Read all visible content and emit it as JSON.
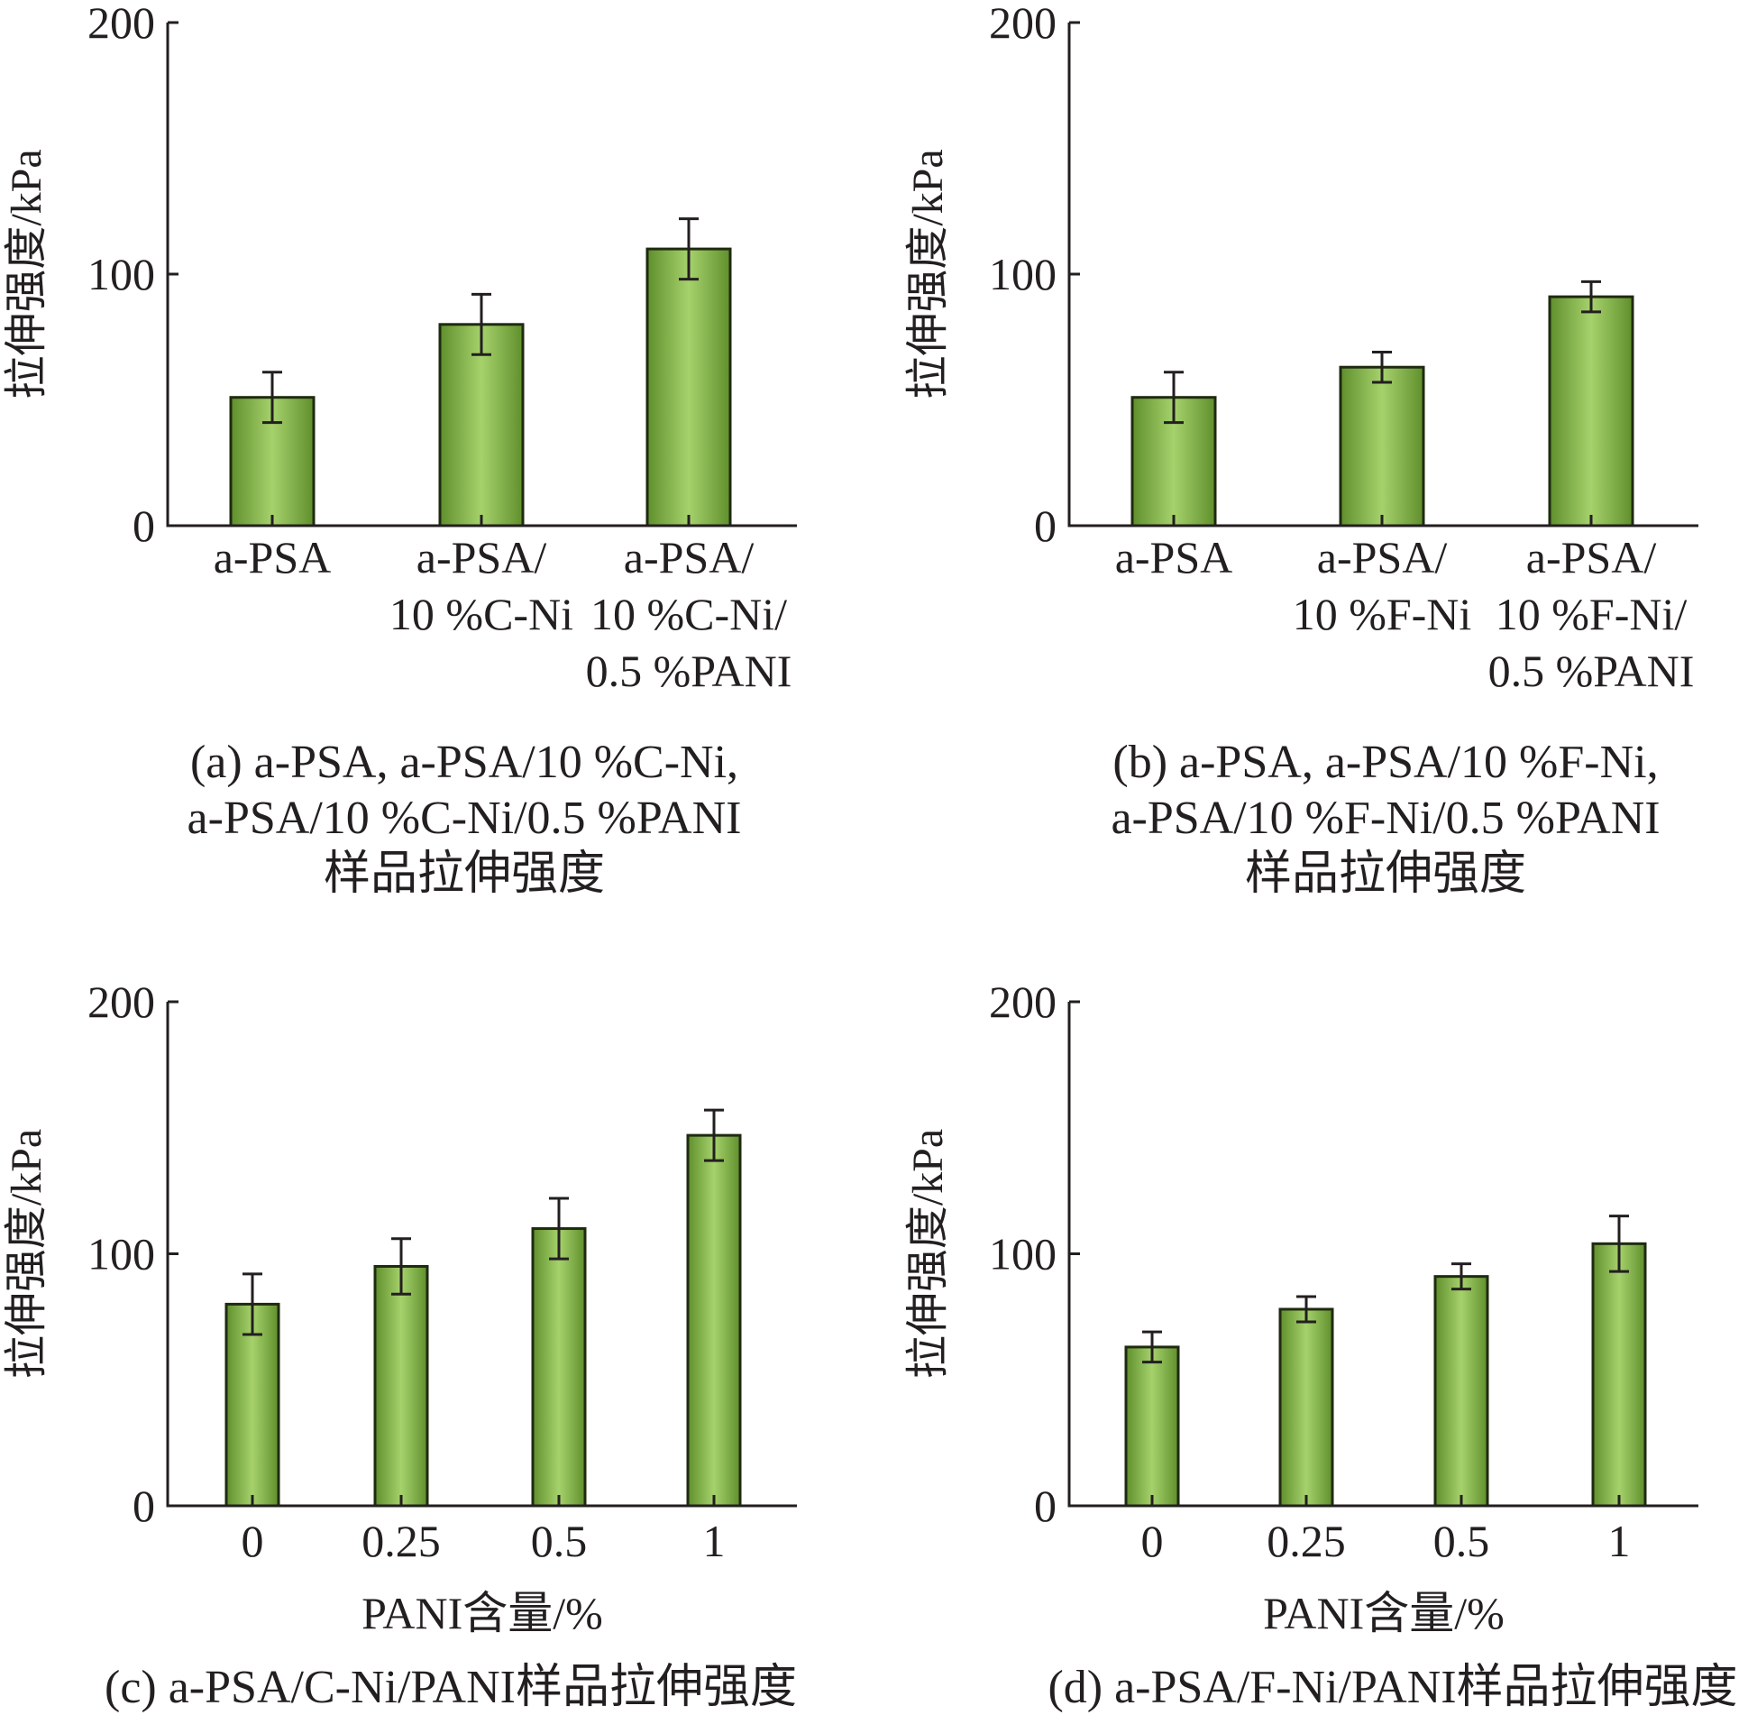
{
  "bar_color": "#8dc155",
  "chart_data": [
    {
      "type": "bar",
      "panel": "a",
      "ylabel": "拉伸强度/kPa",
      "xlabel": "",
      "ylim": [
        0,
        200
      ],
      "yticks": [
        "0",
        "100",
        "200"
      ],
      "categories": [
        [
          "a-PSA"
        ],
        [
          "a-PSA/",
          "10 %C-Ni"
        ],
        [
          "a-PSA/",
          "10 %C-Ni/",
          "0.5 %PANI"
        ]
      ],
      "values": [
        51,
        80,
        110
      ],
      "errors": [
        10,
        12,
        12
      ],
      "caption": [
        "(a) a-PSA, a-PSA/10 %C-Ni,",
        "a-PSA/10 %C-Ni/0.5 %PANI",
        "样品拉伸强度"
      ]
    },
    {
      "type": "bar",
      "panel": "b",
      "ylabel": "拉伸强度/kPa",
      "xlabel": "",
      "ylim": [
        0,
        200
      ],
      "yticks": [
        "0",
        "100",
        "200"
      ],
      "categories": [
        [
          "a-PSA"
        ],
        [
          "a-PSA/",
          "10 %F-Ni"
        ],
        [
          "a-PSA/",
          "10 %F-Ni/",
          "0.5 %PANI"
        ]
      ],
      "values": [
        51,
        63,
        91
      ],
      "errors": [
        10,
        6,
        6
      ],
      "caption": [
        "(b) a-PSA, a-PSA/10 %F-Ni,",
        "a-PSA/10 %F-Ni/0.5 %PANI",
        "样品拉伸强度"
      ]
    },
    {
      "type": "bar",
      "panel": "c",
      "ylabel": "拉伸强度/kPa",
      "xlabel": "PANI含量/%",
      "ylim": [
        0,
        200
      ],
      "yticks": [
        "0",
        "100",
        "200"
      ],
      "categories": [
        [
          "0"
        ],
        [
          "0.25"
        ],
        [
          "0.5"
        ],
        [
          "1"
        ]
      ],
      "values": [
        80,
        95,
        110,
        147
      ],
      "errors": [
        12,
        11,
        12,
        10
      ],
      "caption": [
        "(c) a-PSA/C-Ni/PANI样品拉伸强度"
      ]
    },
    {
      "type": "bar",
      "panel": "d",
      "ylabel": "拉伸强度/kPa",
      "xlabel": "PANI含量/%",
      "ylim": [
        0,
        200
      ],
      "yticks": [
        "0",
        "100",
        "200"
      ],
      "categories": [
        [
          "0"
        ],
        [
          "0.25"
        ],
        [
          "0.5"
        ],
        [
          "1"
        ]
      ],
      "values": [
        63,
        78,
        91,
        104
      ],
      "errors": [
        6,
        5,
        5,
        11
      ],
      "caption": [
        "(d) a-PSA/F-Ni/PANI样品拉伸强度"
      ]
    }
  ]
}
